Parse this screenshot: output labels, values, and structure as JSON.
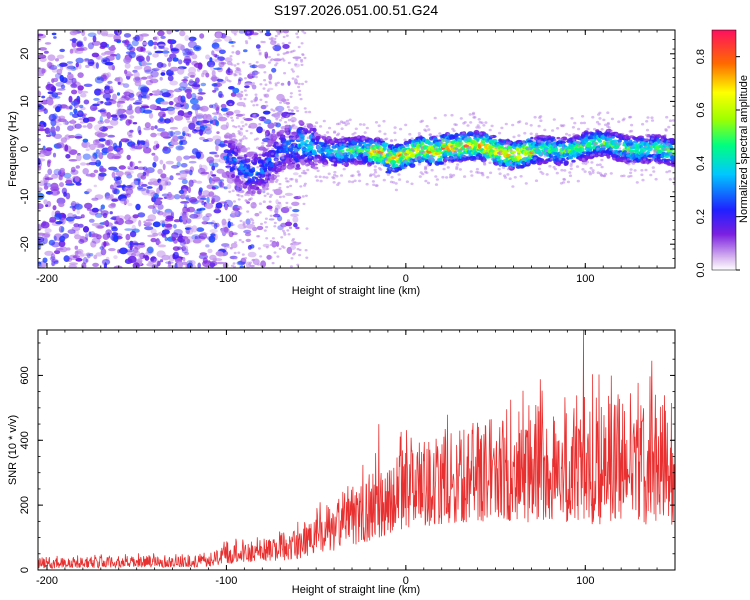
{
  "title": "S197.2026.051.00.51.G24",
  "chart_data": [
    {
      "type": "heatmap",
      "name": "spectrogram",
      "xlabel": "Height of straight line (km)",
      "ylabel": "Frequency (Hz)",
      "xlim": [
        -205,
        150
      ],
      "ylim": [
        -25,
        25
      ],
      "x_ticks": [
        -200,
        -100,
        0,
        100
      ],
      "x_tick_labels": [
        "-200",
        "-100",
        "0",
        "100"
      ],
      "y_ticks": [
        20,
        10,
        0,
        -10,
        -20
      ],
      "y_tick_labels": [
        "20",
        "10",
        "0",
        "-10",
        "-20"
      ],
      "colorbar": {
        "label": "Normalized spectral amplitude",
        "range": [
          0,
          0.9
        ],
        "ticks": [
          0.0,
          0.2,
          0.4,
          0.6,
          0.8
        ],
        "tick_labels": [
          "0.0",
          "0.2",
          "0.4",
          "0.6",
          "0.8"
        ]
      },
      "description_track": "noise band at all frequencies for height < -60 km; narrow band near 0 Hz from -100 to 150 km with peak amplitude ~0.9 near 0 to 60 km"
    },
    {
      "type": "line",
      "name": "snr",
      "xlabel": "Height of straight line (km)",
      "ylabel": "SNR (10 * v/v)",
      "xlim": [
        -205,
        150
      ],
      "ylim": [
        0,
        740
      ],
      "x_ticks": [
        -200,
        -100,
        0,
        100
      ],
      "x_tick_labels": [
        "-200",
        "-100",
        "0",
        "100"
      ],
      "y_ticks": [
        0,
        200,
        400,
        600
      ],
      "y_tick_labels": [
        "0",
        "200",
        "400",
        "600"
      ],
      "color": "#e83030",
      "trend": [
        {
          "x": -205,
          "low": 5,
          "high": 40
        },
        {
          "x": -110,
          "low": 10,
          "high": 45
        },
        {
          "x": -100,
          "low": 20,
          "high": 80
        },
        {
          "x": -65,
          "low": 30,
          "high": 110
        },
        {
          "x": -45,
          "low": 50,
          "high": 190
        },
        {
          "x": -20,
          "low": 90,
          "high": 300
        },
        {
          "x": 0,
          "low": 130,
          "high": 380
        },
        {
          "x": 40,
          "low": 150,
          "high": 450
        },
        {
          "x": 100,
          "low": 140,
          "high": 560
        },
        {
          "x": 150,
          "low": 140,
          "high": 500
        }
      ],
      "peaks": [
        {
          "x": -44,
          "y": 200
        },
        {
          "x": -15,
          "y": 450
        },
        {
          "x": 99,
          "y": 740
        },
        {
          "x": 137,
          "y": 645
        },
        {
          "x": 148,
          "y": 515
        }
      ]
    }
  ]
}
